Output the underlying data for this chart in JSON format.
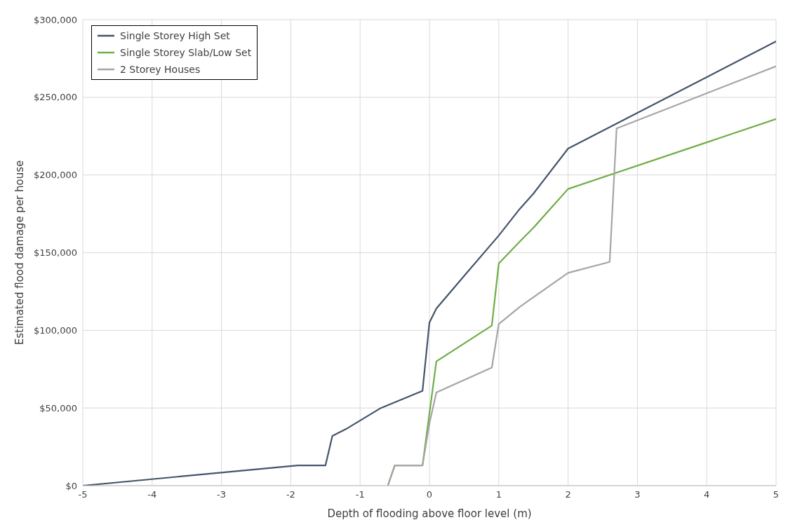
{
  "chart_data": {
    "type": "line",
    "xlabel": "Depth of flooding above floor level (m)",
    "ylabel": "Estimated flood damage per house",
    "xlim": [
      -5,
      5
    ],
    "xticks": [
      -5,
      -4,
      -3,
      -2,
      -1,
      0,
      1,
      2,
      3,
      4,
      5
    ],
    "ylim": [
      0,
      300000
    ],
    "yticks": [
      {
        "value": 0,
        "label": "$0"
      },
      {
        "value": 50000,
        "label": "$50,000"
      },
      {
        "value": 100000,
        "label": "$100,000"
      },
      {
        "value": 150000,
        "label": "$150,000"
      },
      {
        "value": 200000,
        "label": "$200,000"
      },
      {
        "value": 250000,
        "label": "$250,000"
      },
      {
        "value": 300000,
        "label": "$300,000"
      }
    ],
    "grid": true,
    "legend": "top left",
    "marker": "none",
    "line_style": "solid",
    "series": [
      {
        "name": "Single Storey High Set",
        "color": "#44546a",
        "x": [
          -5,
          -1.9,
          -1.5,
          -1.4,
          -1.2,
          -0.7,
          -0.1,
          0,
          0.1,
          0.5,
          1,
          1.3,
          1.5,
          2,
          5
        ],
        "values": [
          0,
          13000,
          13000,
          32000,
          36500,
          50000,
          61000,
          105000,
          114000,
          135000,
          161000,
          178000,
          188000,
          217000,
          286000
        ]
      },
      {
        "name": "Single Storey Slab/Low Set",
        "color": "#70ad47",
        "x": [
          -0.6,
          -0.5,
          -0.1,
          0.1,
          0.9,
          1,
          1.3,
          1.5,
          1.8,
          2,
          5
        ],
        "values": [
          0,
          13000,
          13000,
          80000,
          103000,
          143000,
          157000,
          166000,
          181000,
          191000,
          236000
        ]
      },
      {
        "name": "2 Storey Houses",
        "color": "#a5a5a5",
        "x": [
          -0.6,
          -0.5,
          -0.1,
          0,
          0.1,
          0.5,
          0.9,
          1,
          1.3,
          2,
          2.6,
          2.7,
          5
        ],
        "values": [
          0,
          13000,
          13000,
          40000,
          60000,
          68000,
          76000,
          104000,
          115000,
          137000,
          144000,
          230000,
          270000
        ]
      }
    ]
  }
}
